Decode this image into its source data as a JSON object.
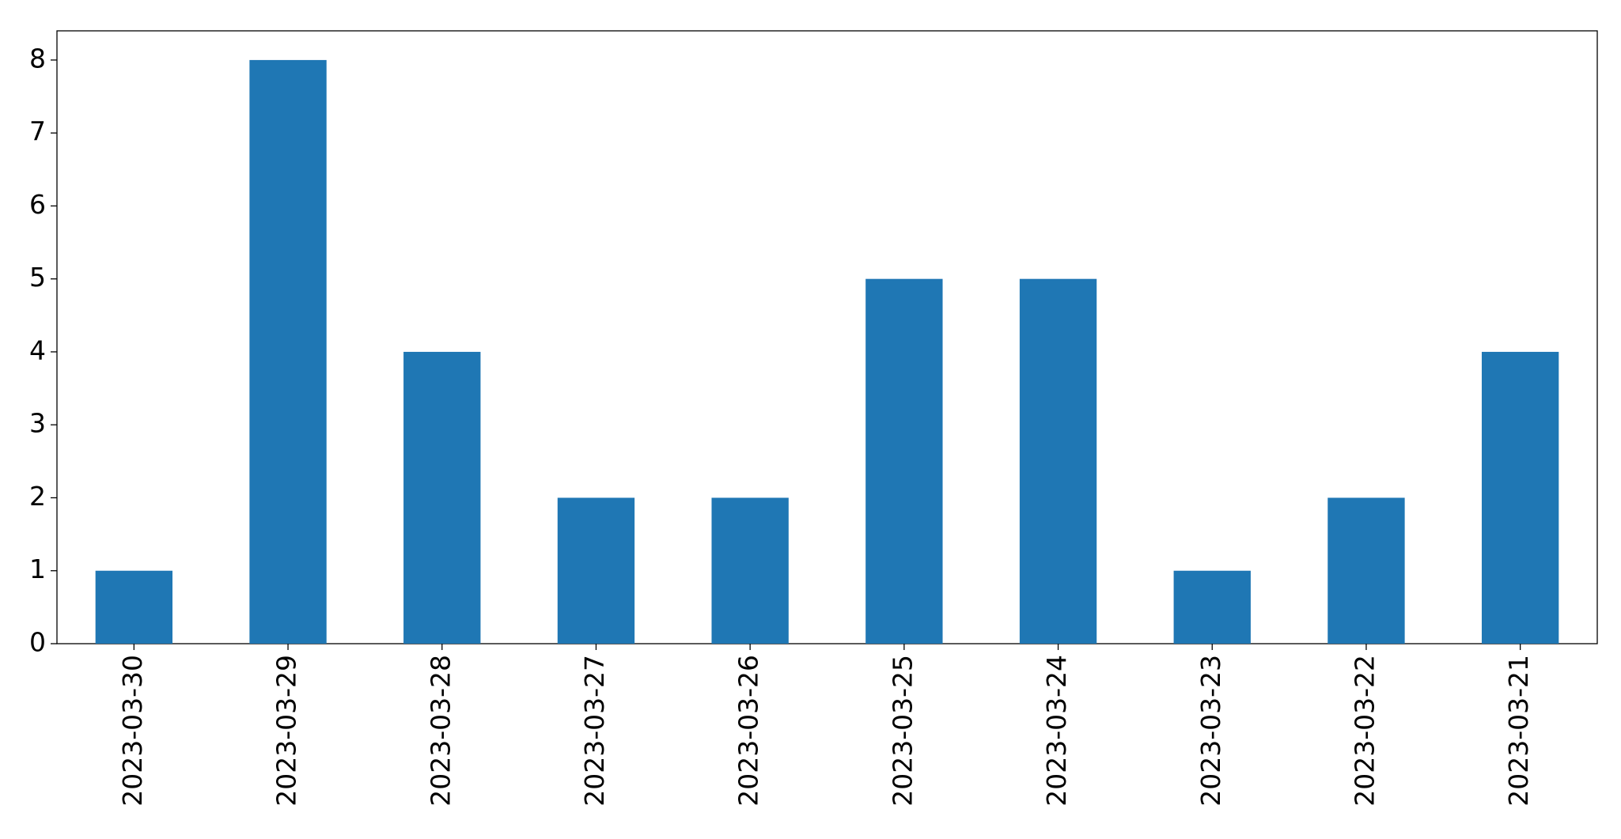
{
  "chart_data": {
    "type": "bar",
    "categories": [
      "2023-03-30",
      "2023-03-29",
      "2023-03-28",
      "2023-03-27",
      "2023-03-26",
      "2023-03-25",
      "2023-03-24",
      "2023-03-23",
      "2023-03-22",
      "2023-03-21"
    ],
    "values": [
      1,
      8,
      4,
      2,
      2,
      5,
      5,
      1,
      2,
      4
    ],
    "color": "#1f77b4",
    "ylim": [
      0,
      8.4
    ],
    "yticks": [
      0,
      1,
      2,
      3,
      4,
      5,
      6,
      7,
      8
    ],
    "grid": false
  }
}
